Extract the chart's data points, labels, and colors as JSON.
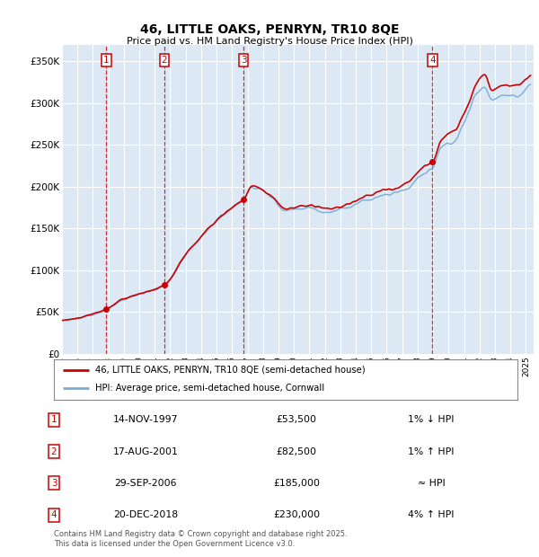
{
  "title": "46, LITTLE OAKS, PENRYN, TR10 8QE",
  "subtitle": "Price paid vs. HM Land Registry's House Price Index (HPI)",
  "ylabel_ticks": [
    "£0",
    "£50K",
    "£100K",
    "£150K",
    "£200K",
    "£250K",
    "£300K",
    "£350K"
  ],
  "ytick_values": [
    0,
    50000,
    100000,
    150000,
    200000,
    250000,
    300000,
    350000
  ],
  "ylim": [
    0,
    370000
  ],
  "xlim_start": 1995.0,
  "xlim_end": 2025.5,
  "bg_color": "#dce9f5",
  "grid_color": "#ffffff",
  "hpi_line_color": "#7aadd4",
  "price_line_color": "#cc0000",
  "sale_marker_color": "#cc0000",
  "transactions": [
    {
      "num": 1,
      "date": "14-NOV-1997",
      "year": 1997.87,
      "price": 53500,
      "rel": "1% ↓ HPI"
    },
    {
      "num": 2,
      "date": "17-AUG-2001",
      "year": 2001.62,
      "price": 82500,
      "rel": "1% ↑ HPI"
    },
    {
      "num": 3,
      "date": "29-SEP-2006",
      "year": 2006.75,
      "price": 185000,
      "rel": "≈ HPI"
    },
    {
      "num": 4,
      "date": "20-DEC-2018",
      "year": 2018.96,
      "price": 230000,
      "rel": "4% ↑ HPI"
    }
  ],
  "legend_label_red": "46, LITTLE OAKS, PENRYN, TR10 8QE (semi-detached house)",
  "legend_label_blue": "HPI: Average price, semi-detached house, Cornwall",
  "footer_line1": "Contains HM Land Registry data © Crown copyright and database right 2025.",
  "footer_line2": "This data is licensed under the Open Government Licence v3.0.",
  "xtick_years": [
    1995,
    1996,
    1997,
    1998,
    1999,
    2000,
    2001,
    2002,
    2003,
    2004,
    2005,
    2006,
    2007,
    2008,
    2009,
    2010,
    2011,
    2012,
    2013,
    2014,
    2015,
    2016,
    2017,
    2018,
    2019,
    2020,
    2021,
    2022,
    2023,
    2024,
    2025
  ]
}
